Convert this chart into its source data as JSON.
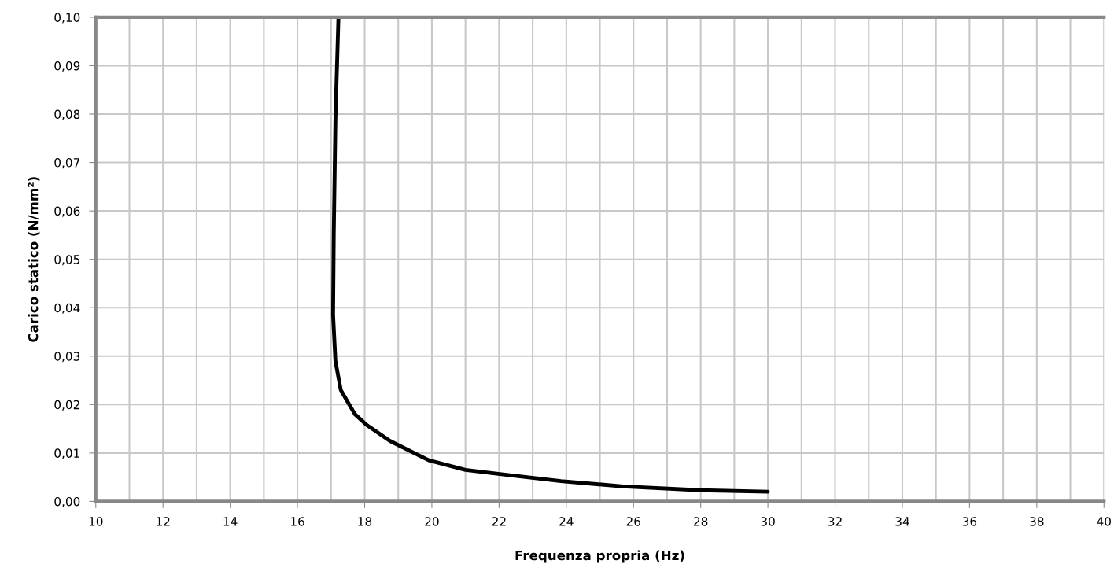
{
  "chart_data": {
    "type": "line",
    "xlabel": "Frequenza propria (Hz)",
    "ylabel": "Carico statico (N/mm²)",
    "series": [
      {
        "color": "#000000",
        "x": [
          17.22,
          17.13,
          17.08,
          17.06,
          17.13,
          17.29,
          17.71,
          18.06,
          18.75,
          19.91,
          21.0,
          22.22,
          23.84,
          25.69,
          28.0,
          30.0
        ],
        "values": [
          0.1,
          0.079,
          0.055,
          0.0385,
          0.029,
          0.023,
          0.018,
          0.0158,
          0.0125,
          0.0085,
          0.0065,
          0.0055,
          0.0042,
          0.0031,
          0.0023,
          0.002
        ]
      }
    ],
    "xlim": [
      10,
      40
    ],
    "ylim": [
      0,
      0.1
    ],
    "xticks": [
      10,
      {
        "value": 11,
        "label": null
      },
      12,
      {
        "value": 13,
        "label": null
      },
      14,
      {
        "value": 15,
        "label": null
      },
      16,
      {
        "value": 17,
        "label": null
      },
      18,
      {
        "value": 19,
        "label": null
      },
      20,
      {
        "value": 21,
        "label": null
      },
      22,
      {
        "value": 23,
        "label": null
      },
      24,
      {
        "value": 25,
        "label": null
      },
      26,
      {
        "value": 27,
        "label": null
      },
      28,
      {
        "value": 29,
        "label": null
      },
      30,
      {
        "value": 31,
        "label": null
      },
      32,
      {
        "value": 33,
        "label": null
      },
      34,
      {
        "value": 35,
        "label": null
      },
      36,
      {
        "value": 37,
        "label": null
      },
      38,
      {
        "value": 39,
        "label": null
      },
      40
    ],
    "yticks": [
      {
        "value": 0,
        "label": "0,00"
      },
      {
        "value": 0.01,
        "label": "0,01"
      },
      {
        "value": 0.02,
        "label": "0,02"
      },
      {
        "value": 0.03,
        "label": "0,03"
      },
      {
        "value": 0.04,
        "label": "0,04"
      },
      {
        "value": 0.05,
        "label": "0,05"
      },
      {
        "value": 0.06,
        "label": "0,06"
      },
      {
        "value": 0.07,
        "label": "0,07"
      },
      {
        "value": 0.08,
        "label": "0,08"
      },
      {
        "value": 0.09,
        "label": "0,09"
      },
      {
        "value": 0.1,
        "label": "0,10"
      }
    ],
    "grid": true,
    "marker": "none",
    "line_style": "solid",
    "legend": false
  }
}
